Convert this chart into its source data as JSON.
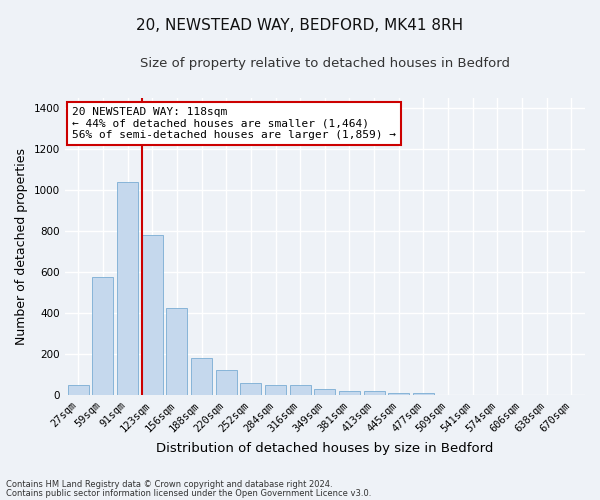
{
  "title1": "20, NEWSTEAD WAY, BEDFORD, MK41 8RH",
  "title2": "Size of property relative to detached houses in Bedford",
  "xlabel": "Distribution of detached houses by size in Bedford",
  "ylabel": "Number of detached properties",
  "categories": [
    "27sqm",
    "59sqm",
    "91sqm",
    "123sqm",
    "156sqm",
    "188sqm",
    "220sqm",
    "252sqm",
    "284sqm",
    "316sqm",
    "349sqm",
    "381sqm",
    "413sqm",
    "445sqm",
    "477sqm",
    "509sqm",
    "541sqm",
    "574sqm",
    "606sqm",
    "638sqm",
    "670sqm"
  ],
  "values": [
    48,
    575,
    1040,
    780,
    425,
    182,
    125,
    62,
    48,
    48,
    28,
    21,
    21,
    12,
    10,
    0,
    0,
    0,
    0,
    0,
    0
  ],
  "bar_color": "#c5d8ed",
  "bar_edge_color": "#7aadd4",
  "vline_color": "#cc0000",
  "vline_x_index": 2.58,
  "ylim": [
    0,
    1450
  ],
  "yticks": [
    0,
    200,
    400,
    600,
    800,
    1000,
    1200,
    1400
  ],
  "annotation_text": "20 NEWSTEAD WAY: 118sqm\n← 44% of detached houses are smaller (1,464)\n56% of semi-detached houses are larger (1,859) →",
  "annotation_box_color": "#ffffff",
  "annotation_border_color": "#cc0000",
  "footer1": "Contains HM Land Registry data © Crown copyright and database right 2024.",
  "footer2": "Contains public sector information licensed under the Open Government Licence v3.0.",
  "bg_color": "#eef2f7",
  "grid_color": "#ffffff",
  "title_fontsize": 11,
  "subtitle_fontsize": 9.5,
  "tick_fontsize": 7.5,
  "ylabel_fontsize": 9,
  "xlabel_fontsize": 9.5,
  "annotation_fontsize": 8,
  "footer_fontsize": 6
}
